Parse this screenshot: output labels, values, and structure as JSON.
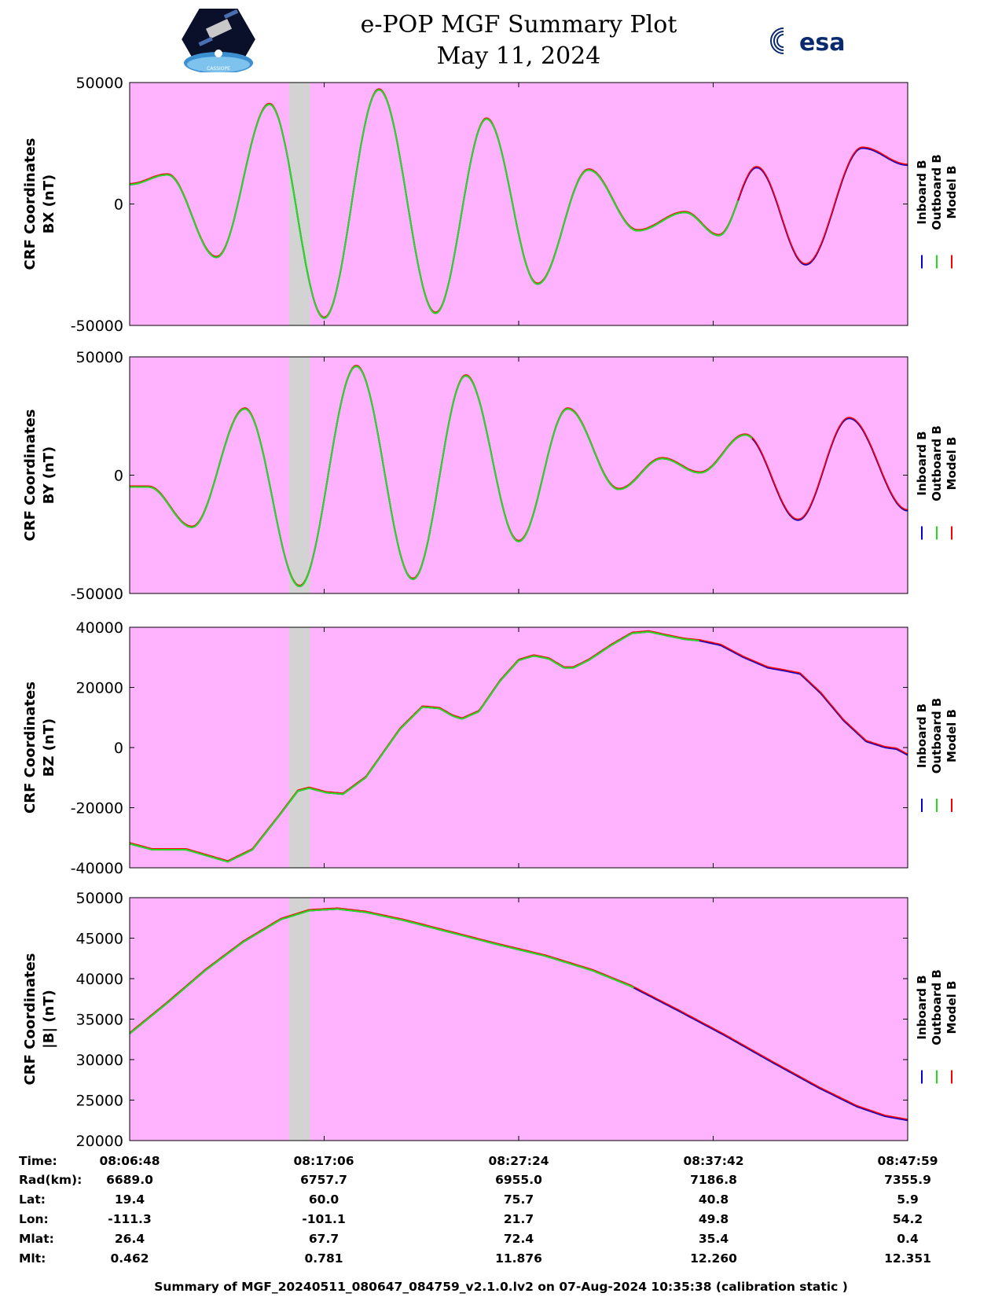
{
  "header": {
    "title": "e-POP MGF Summary Plot",
    "date": "May 11, 2024",
    "logo_left_text": "CASSIOPE",
    "logo_right_text": "esa"
  },
  "footer": {
    "text": "Summary of MGF_20240511_080647_084759_v2.1.0.lv2 on 07-Aug-2024 10:35:38 (calibration static )"
  },
  "colors": {
    "background": "#ffb3ff",
    "gap": "#d3d3d3",
    "inboard": "#0000cc",
    "outboard": "#22dd22",
    "model": "#ff0000"
  },
  "chart_data": [
    {
      "type": "line",
      "ylabel": "CRF Coordinates",
      "ylabel2": "BX (nT)",
      "ylim": [
        -50000,
        50000
      ],
      "yticks": [
        -50000,
        0,
        50000
      ],
      "ytick_labels": [
        "-50000",
        "0",
        "50000"
      ],
      "legend": [
        "Inboard B",
        "Outboard B",
        "Model B"
      ],
      "time_range_min": [
        0,
        41.2
      ],
      "gap_min": [
        8.45,
        9.55
      ],
      "outboard_end_min": 32.3,
      "extrema": [
        [
          0,
          8000
        ],
        [
          2.0,
          12000
        ],
        [
          4.6,
          -22000
        ],
        [
          7.4,
          41000
        ],
        [
          10.3,
          -47000
        ],
        [
          13.2,
          47000
        ],
        [
          16.2,
          -45000
        ],
        [
          18.9,
          35000
        ],
        [
          21.6,
          -33000
        ],
        [
          24.3,
          14000
        ],
        [
          26.9,
          -11000
        ],
        [
          29.4,
          -3500
        ],
        [
          31.2,
          -13000
        ],
        [
          33.2,
          15000
        ],
        [
          35.8,
          -25000
        ],
        [
          38.8,
          23000
        ],
        [
          41.2,
          16000
        ]
      ]
    },
    {
      "type": "line",
      "ylabel": "CRF Coordinates",
      "ylabel2": "BY (nT)",
      "ylim": [
        -50000,
        50000
      ],
      "yticks": [
        -50000,
        0,
        50000
      ],
      "ytick_labels": [
        "-50000",
        "0",
        "50000"
      ],
      "legend": [
        "Inboard B",
        "Outboard B",
        "Model B"
      ],
      "time_range_min": [
        0,
        41.2
      ],
      "gap_min": [
        8.45,
        9.55
      ],
      "outboard_end_min": 33.0,
      "extrema": [
        [
          0,
          -5000
        ],
        [
          1.0,
          -5000
        ],
        [
          3.3,
          -22000
        ],
        [
          6.1,
          28000
        ],
        [
          9.0,
          -47000
        ],
        [
          12.0,
          46000
        ],
        [
          15.0,
          -44000
        ],
        [
          17.8,
          42000
        ],
        [
          20.6,
          -28000
        ],
        [
          23.2,
          28000
        ],
        [
          25.9,
          -6000
        ],
        [
          28.2,
          7000
        ],
        [
          30.2,
          1000
        ],
        [
          32.6,
          17000
        ],
        [
          35.4,
          -19000
        ],
        [
          38.1,
          24000
        ],
        [
          41.2,
          -15000
        ]
      ]
    },
    {
      "type": "line",
      "ylabel": "CRF Coordinates",
      "ylabel2": "BZ (nT)",
      "ylim": [
        -40000,
        40000
      ],
      "yticks": [
        -40000,
        -20000,
        0,
        20000,
        40000
      ],
      "ytick_labels": [
        "-40000",
        "-20000",
        "0",
        "20000",
        "40000"
      ],
      "legend": [
        "Inboard B",
        "Outboard B",
        "Model B"
      ],
      "time_range_min": [
        0,
        41.2
      ],
      "gap_min": [
        8.45,
        9.55
      ],
      "outboard_end_min": 30.2,
      "points": [
        [
          0,
          -32000
        ],
        [
          1.2,
          -34000
        ],
        [
          3.0,
          -34000
        ],
        [
          5.2,
          -38000
        ],
        [
          6.5,
          -34000
        ],
        [
          8.0,
          -22000
        ],
        [
          8.9,
          -14500
        ],
        [
          9.5,
          -13500
        ],
        [
          10.4,
          -15000
        ],
        [
          11.3,
          -15500
        ],
        [
          12.5,
          -10000
        ],
        [
          14.3,
          6000
        ],
        [
          15.5,
          13500
        ],
        [
          16.4,
          13000
        ],
        [
          17.1,
          10500
        ],
        [
          17.6,
          9500
        ],
        [
          18.5,
          12000
        ],
        [
          19.6,
          22000
        ],
        [
          20.6,
          29000
        ],
        [
          21.4,
          30500
        ],
        [
          22.2,
          29500
        ],
        [
          23.0,
          26500
        ],
        [
          23.5,
          26500
        ],
        [
          24.3,
          29000
        ],
        [
          25.5,
          34000
        ],
        [
          26.6,
          38000
        ],
        [
          27.5,
          38500
        ],
        [
          28.6,
          37000
        ],
        [
          29.4,
          36000
        ],
        [
          30.2,
          35500
        ],
        [
          31.3,
          34000
        ],
        [
          32.5,
          30000
        ],
        [
          33.8,
          26500
        ],
        [
          34.7,
          25500
        ],
        [
          35.5,
          24500
        ],
        [
          36.6,
          18000
        ],
        [
          37.8,
          9000
        ],
        [
          39.0,
          2000
        ],
        [
          40.0,
          0
        ],
        [
          40.6,
          -500
        ],
        [
          41.2,
          -2500
        ]
      ]
    },
    {
      "type": "line",
      "ylabel": "CRF Coordinates",
      "ylabel2": "|B| (nT)",
      "ylim": [
        20000,
        50000
      ],
      "yticks": [
        20000,
        25000,
        30000,
        35000,
        40000,
        45000,
        50000
      ],
      "ytick_labels": [
        "20000",
        "25000",
        "30000",
        "35000",
        "40000",
        "45000",
        "50000"
      ],
      "legend": [
        "Inboard B",
        "Outboard B",
        "Model B"
      ],
      "time_range_min": [
        0,
        41.2
      ],
      "gap_min": [
        8.45,
        9.55
      ],
      "outboard_end_min": 26.7,
      "points": [
        [
          0,
          33200
        ],
        [
          2.0,
          37000
        ],
        [
          4.0,
          41000
        ],
        [
          6.0,
          44500
        ],
        [
          8.0,
          47300
        ],
        [
          9.5,
          48400
        ],
        [
          11.0,
          48600
        ],
        [
          12.5,
          48200
        ],
        [
          14.5,
          47200
        ],
        [
          17.0,
          45700
        ],
        [
          19.5,
          44200
        ],
        [
          22.0,
          42800
        ],
        [
          24.5,
          41000
        ],
        [
          26.5,
          39100
        ],
        [
          29.0,
          36100
        ],
        [
          31.5,
          33000
        ],
        [
          34.0,
          29700
        ],
        [
          36.5,
          26500
        ],
        [
          38.5,
          24200
        ],
        [
          40.0,
          23000
        ],
        [
          41.2,
          22500
        ]
      ]
    }
  ],
  "ephemeris": {
    "labels": [
      "Time:",
      "Rad(km):",
      "Lat:",
      "Lon:",
      "Mlat:",
      "Mlt:"
    ],
    "columns": [
      [
        "08:06:48",
        "6689.0",
        "19.4",
        "-111.3",
        "26.4",
        "0.462"
      ],
      [
        "08:17:06",
        "6757.7",
        "60.0",
        "-101.1",
        "67.7",
        "0.781"
      ],
      [
        "08:27:24",
        "6955.0",
        "75.7",
        "21.7",
        "72.4",
        "11.876"
      ],
      [
        "08:37:42",
        "7186.8",
        "40.8",
        "49.8",
        "35.4",
        "12.260"
      ],
      [
        "08:47:59",
        "7355.9",
        "5.9",
        "54.2",
        "0.4",
        "12.351"
      ]
    ]
  }
}
